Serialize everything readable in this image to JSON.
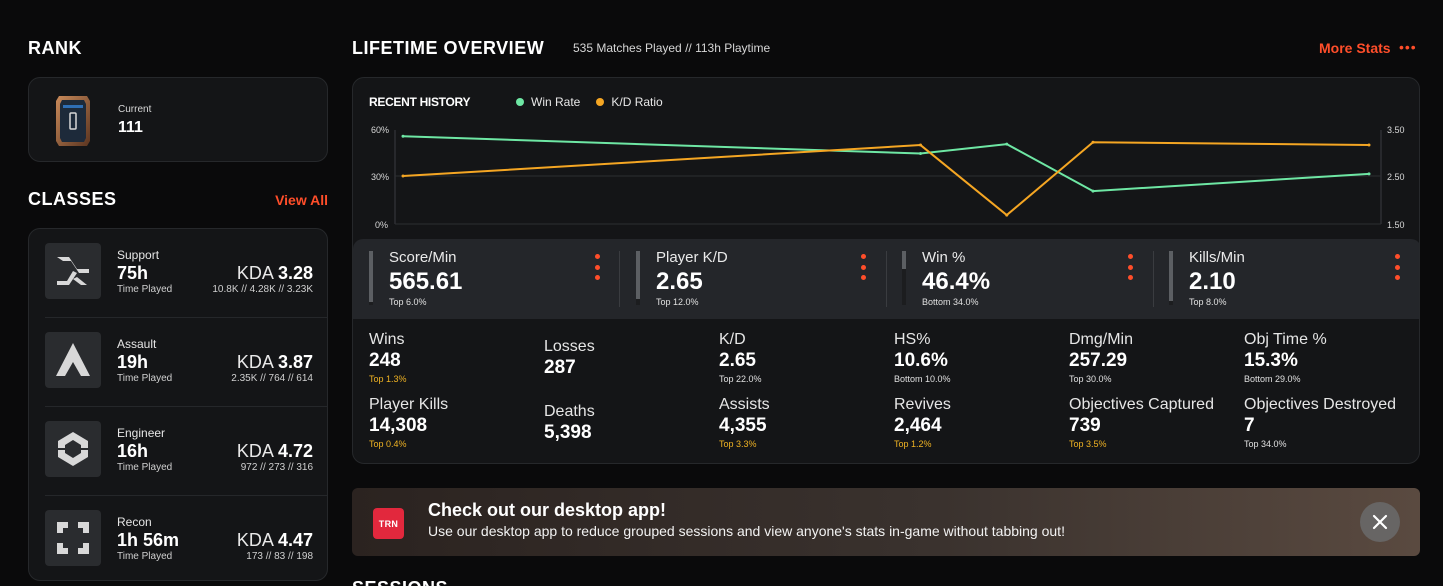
{
  "rank": {
    "title": "RANK",
    "label": "Current",
    "value": "111"
  },
  "classes": {
    "title": "CLASSES",
    "view_all": "View All",
    "items": [
      {
        "name": "Support",
        "time": "75h",
        "sub": "Time Played",
        "kda_label": "KDA",
        "kda": "3.28",
        "kda_sub": "10.8K // 4.28K // 3.23K",
        "icon": "support-class-icon"
      },
      {
        "name": "Assault",
        "time": "19h",
        "sub": "Time Played",
        "kda_label": "KDA",
        "kda": "3.87",
        "kda_sub": "2.35K // 764 // 614",
        "icon": "assault-class-icon"
      },
      {
        "name": "Engineer",
        "time": "16h",
        "sub": "Time Played",
        "kda_label": "KDA",
        "kda": "4.72",
        "kda_sub": "972 // 273 // 316",
        "icon": "engineer-class-icon"
      },
      {
        "name": "Recon",
        "time": "1h 56m",
        "sub": "Time Played",
        "kda_label": "KDA",
        "kda": "4.47",
        "kda_sub": "173 // 83 // 198",
        "icon": "recon-class-icon"
      }
    ]
  },
  "overview": {
    "title": "LIFETIME OVERVIEW",
    "subtitle": "535 Matches Played // 113h Playtime",
    "more_stats": "More Stats",
    "more_icon": "•••"
  },
  "recent_history": {
    "title": "RECENT HISTORY",
    "legend": [
      {
        "name": "Win Rate",
        "color": "#6ee7a4"
      },
      {
        "name": "K/D Ratio",
        "color": "#f5a623"
      }
    ],
    "left_axis": [
      "60%",
      "30%",
      "0%"
    ],
    "right_axis": [
      "3.50",
      "2.50",
      "1.50"
    ]
  },
  "chart_data": {
    "type": "line",
    "title": "RECENT HISTORY",
    "x": [
      1,
      2,
      3,
      4,
      5,
      6
    ],
    "series": [
      {
        "name": "Win Rate",
        "axis": "left",
        "values": [
          56,
          45,
          51,
          21,
          32
        ],
        "x": [
          1,
          4,
          4.5,
          5,
          6.6
        ],
        "color": "#6ee7a4"
      },
      {
        "name": "K/D Ratio",
        "axis": "right",
        "values": [
          2.52,
          3.18,
          1.69,
          3.24,
          3.18
        ],
        "x": [
          1,
          4,
          4.5,
          5,
          6.6
        ],
        "color": "#f5a623"
      }
    ],
    "ylim_left": [
      0,
      60
    ],
    "ylim_right": [
      1.5,
      3.5
    ],
    "grid": true,
    "legend_position": "top-left"
  },
  "highlights": [
    {
      "label": "Score/Min",
      "value": "565.61",
      "rank": "Top 6.0%",
      "fill": 0.94
    },
    {
      "label": "Player K/D",
      "value": "2.65",
      "rank": "Top 12.0%",
      "fill": 0.88
    },
    {
      "label": "Win %",
      "value": "46.4%",
      "rank": "Bottom 34.0%",
      "fill": 0.34
    },
    {
      "label": "Kills/Min",
      "value": "2.10",
      "rank": "Top 8.0%",
      "fill": 0.92
    }
  ],
  "stats": [
    {
      "label": "Wins",
      "value": "248",
      "rank": "Top 1.3%"
    },
    {
      "label": "Losses",
      "value": "287",
      "rank": ""
    },
    {
      "label": "K/D",
      "value": "2.65",
      "rank": "Top 22.0%"
    },
    {
      "label": "HS%",
      "value": "10.6%",
      "rank": "Bottom 10.0%"
    },
    {
      "label": "Dmg/Min",
      "value": "257.29",
      "rank": "Top 30.0%"
    },
    {
      "label": "Obj Time %",
      "value": "15.3%",
      "rank": "Bottom 29.0%"
    },
    {
      "label": "Player Kills",
      "value": "14,308",
      "rank": "Top 0.4%"
    },
    {
      "label": "Deaths",
      "value": "5,398",
      "rank": ""
    },
    {
      "label": "Assists",
      "value": "4,355",
      "rank": "Top 3.3%"
    },
    {
      "label": "Revives",
      "value": "2,464",
      "rank": "Top 1.2%"
    },
    {
      "label": "Objectives Captured",
      "value": "739",
      "rank": "Top 3.5%"
    },
    {
      "label": "Objectives Destroyed",
      "value": "7",
      "rank": "Top 34.0%"
    }
  ],
  "banner": {
    "logo": "TRN",
    "title": "Check out our desktop app!",
    "text": "Use our desktop app to reduce grouped sessions and view anyone's stats in-game without tabbing out!",
    "close_icon": "close-icon"
  },
  "sessions": {
    "title": "SESSIONS"
  },
  "colors": {
    "accent": "#ff4e2a",
    "gold": "#f0b323",
    "win_rate": "#6ee7a4",
    "kd_ratio": "#f5a623"
  }
}
